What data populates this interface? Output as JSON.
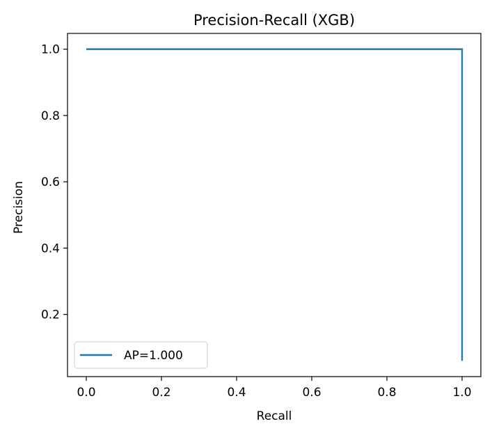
{
  "chart_data": {
    "type": "line",
    "title": "Precision-Recall (XGB)",
    "xlabel": "Recall",
    "ylabel": "Precision",
    "xlim": [
      -0.05,
      1.05
    ],
    "ylim": [
      0.0125,
      1.0475
    ],
    "xticks": [
      0.0,
      0.2,
      0.4,
      0.6,
      0.8,
      1.0
    ],
    "xtick_labels": [
      "0.0",
      "0.2",
      "0.4",
      "0.6",
      "0.8",
      "1.0"
    ],
    "yticks": [
      0.2,
      0.4,
      0.6,
      0.8,
      1.0
    ],
    "ytick_labels": [
      "0.2",
      "0.4",
      "0.6",
      "0.8",
      "1.0"
    ],
    "grid": false,
    "legend_position": "lower-left",
    "series": [
      {
        "name": "AP=1.000",
        "color": "#1f77b4",
        "x": [
          0.0,
          1.0,
          1.0
        ],
        "y": [
          1.0,
          1.0,
          0.06
        ]
      }
    ]
  }
}
